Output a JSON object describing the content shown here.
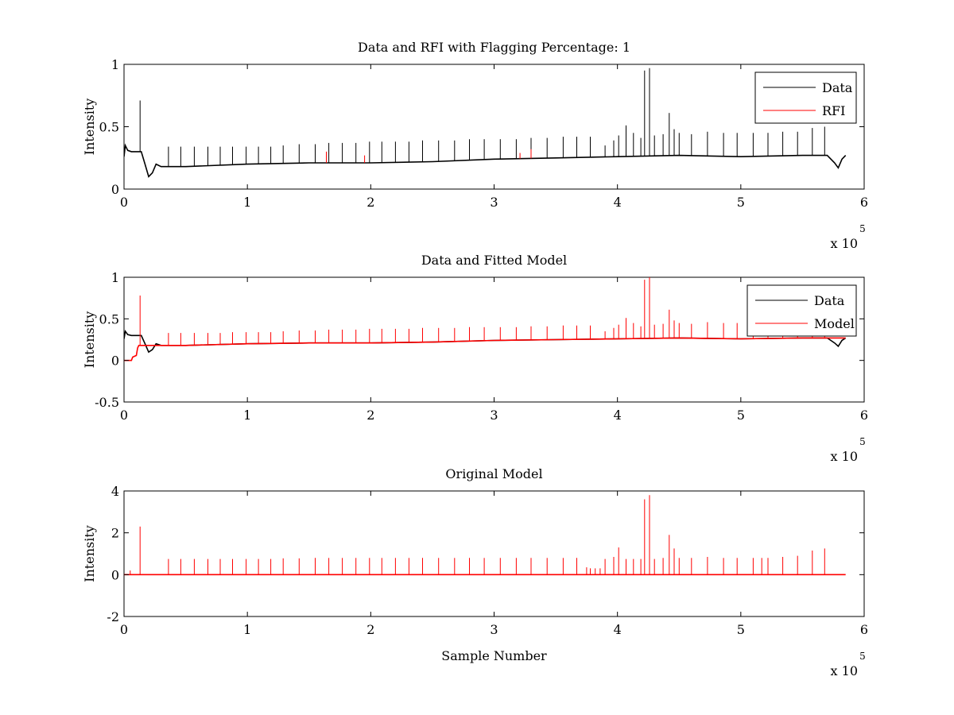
{
  "colors": {
    "data": "#000000",
    "rfi": "#ff0000",
    "model": "#ff0000"
  },
  "chart_data": [
    {
      "type": "line",
      "title": "Data and RFI with Flagging Percentage: 1",
      "xlabel": "",
      "ylabel": "Intensity",
      "xlim": [
        0,
        6
      ],
      "ylim": [
        0,
        1
      ],
      "x_multiplier": "x 10",
      "x_multiplier_exp": "5",
      "xticks": [
        0,
        1,
        2,
        3,
        4,
        5,
        6
      ],
      "yticks": [
        0,
        0.5,
        1
      ],
      "ytick_labels": [
        "0",
        "0.5",
        "1"
      ],
      "legend": {
        "placement": "top-right",
        "entries": [
          "Data",
          "RFI"
        ]
      },
      "series": [
        {
          "name": "Data",
          "color": "#000000",
          "baseline": {
            "x": [
              0,
              0.01,
              0.03,
              0.06,
              0.1,
              0.14,
              0.17,
              0.2,
              0.23,
              0.26,
              0.3,
              0.5,
              1,
              1.5,
              2,
              2.5,
              3,
              3.5,
              4,
              4.5,
              5,
              5.5,
              5.7,
              5.76,
              5.79,
              5.82,
              5.85
            ],
            "y": [
              0.26,
              0.35,
              0.31,
              0.3,
              0.3,
              0.3,
              0.2,
              0.1,
              0.13,
              0.2,
              0.18,
              0.18,
              0.2,
              0.21,
              0.21,
              0.22,
              0.24,
              0.25,
              0.26,
              0.27,
              0.26,
              0.27,
              0.27,
              0.21,
              0.17,
              0.24,
              0.27
            ]
          },
          "spikes": {
            "x": [
              0.13,
              0.36,
              0.46,
              0.57,
              0.68,
              0.78,
              0.88,
              0.99,
              1.09,
              1.19,
              1.29,
              1.42,
              1.55,
              1.66,
              1.77,
              1.88,
              1.99,
              2.09,
              2.2,
              2.31,
              2.42,
              2.55,
              2.68,
              2.8,
              2.92,
              3.05,
              3.18,
              3.3,
              3.43,
              3.56,
              3.67,
              3.78,
              3.9,
              3.97,
              4.01,
              4.07,
              4.13,
              4.19,
              4.22,
              4.26,
              4.3,
              4.37,
              4.42,
              4.46,
              4.5,
              4.6,
              4.73,
              4.86,
              4.97,
              5.1,
              5.22,
              5.34,
              5.46,
              5.58,
              5.68
            ],
            "y": [
              0.71,
              0.34,
              0.34,
              0.34,
              0.34,
              0.34,
              0.34,
              0.34,
              0.34,
              0.34,
              0.35,
              0.36,
              0.36,
              0.37,
              0.37,
              0.37,
              0.38,
              0.38,
              0.38,
              0.38,
              0.39,
              0.39,
              0.39,
              0.4,
              0.4,
              0.4,
              0.4,
              0.41,
              0.41,
              0.42,
              0.42,
              0.42,
              0.35,
              0.39,
              0.43,
              0.51,
              0.45,
              0.41,
              0.95,
              0.97,
              0.43,
              0.44,
              0.61,
              0.48,
              0.45,
              0.44,
              0.46,
              0.45,
              0.45,
              0.45,
              0.45,
              0.46,
              0.46,
              0.49,
              0.5
            ]
          }
        },
        {
          "name": "RFI",
          "color": "#ff0000",
          "spikes": {
            "x": [
              1.64,
              1.95,
              3.21,
              3.3
            ],
            "y": [
              0.3,
              0.27,
              0.29,
              0.32
            ]
          }
        }
      ]
    },
    {
      "type": "line",
      "title": "Data and Fitted Model",
      "xlabel": "",
      "ylabel": "Intensity",
      "xlim": [
        0,
        6
      ],
      "ylim": [
        -0.5,
        1
      ],
      "x_multiplier": "x 10",
      "x_multiplier_exp": "5",
      "xticks": [
        0,
        1,
        2,
        3,
        4,
        5,
        6
      ],
      "yticks": [
        -0.5,
        0,
        0.5,
        1
      ],
      "ytick_labels": [
        "-0.5",
        "0",
        "0.5",
        "1"
      ],
      "legend": {
        "placement": "top-right",
        "entries": [
          "Data",
          "Model"
        ]
      },
      "series": [
        {
          "name": "Data",
          "color": "#000000",
          "baseline": {
            "x": [
              0,
              0.01,
              0.03,
              0.06,
              0.1,
              0.14,
              0.17,
              0.2,
              0.23,
              0.26,
              0.3,
              0.5,
              1,
              1.5,
              2,
              2.5,
              3,
              3.5,
              4,
              4.5,
              5,
              5.5,
              5.7,
              5.76,
              5.79,
              5.82,
              5.85
            ],
            "y": [
              0.26,
              0.35,
              0.31,
              0.3,
              0.3,
              0.3,
              0.2,
              0.1,
              0.13,
              0.2,
              0.18,
              0.18,
              0.2,
              0.21,
              0.21,
              0.22,
              0.24,
              0.25,
              0.26,
              0.27,
              0.26,
              0.27,
              0.27,
              0.21,
              0.17,
              0.24,
              0.27
            ]
          }
        },
        {
          "name": "Model",
          "color": "#ff0000",
          "baseline": {
            "x": [
              0,
              0.06,
              0.07,
              0.1,
              0.11,
              0.12,
              0.14,
              0.3,
              0.5,
              1,
              1.5,
              2,
              2.5,
              3,
              3.5,
              4,
              4.5,
              5,
              5.5,
              5.85
            ],
            "y": [
              0.0,
              0.0,
              0.04,
              0.06,
              0.15,
              0.18,
              0.18,
              0.18,
              0.18,
              0.2,
              0.21,
              0.21,
              0.22,
              0.24,
              0.25,
              0.26,
              0.27,
              0.26,
              0.27,
              0.27
            ]
          },
          "spikes": {
            "x": [
              0.13,
              0.36,
              0.46,
              0.57,
              0.68,
              0.78,
              0.88,
              0.99,
              1.09,
              1.19,
              1.29,
              1.42,
              1.55,
              1.66,
              1.77,
              1.88,
              1.99,
              2.09,
              2.2,
              2.31,
              2.42,
              2.55,
              2.68,
              2.8,
              2.92,
              3.05,
              3.18,
              3.3,
              3.43,
              3.56,
              3.67,
              3.78,
              3.9,
              3.97,
              4.01,
              4.07,
              4.13,
              4.19,
              4.22,
              4.26,
              4.3,
              4.37,
              4.42,
              4.46,
              4.5,
              4.6,
              4.73,
              4.86,
              4.97,
              5.1,
              5.22,
              5.34,
              5.46,
              5.58,
              5.68
            ],
            "y": [
              0.78,
              0.33,
              0.33,
              0.33,
              0.33,
              0.33,
              0.34,
              0.34,
              0.34,
              0.34,
              0.35,
              0.36,
              0.36,
              0.37,
              0.37,
              0.37,
              0.38,
              0.38,
              0.38,
              0.38,
              0.39,
              0.39,
              0.39,
              0.4,
              0.4,
              0.4,
              0.4,
              0.41,
              0.41,
              0.42,
              0.42,
              0.42,
              0.35,
              0.39,
              0.43,
              0.51,
              0.45,
              0.41,
              0.97,
              1.0,
              0.43,
              0.44,
              0.61,
              0.48,
              0.45,
              0.44,
              0.46,
              0.45,
              0.45,
              0.45,
              0.45,
              0.46,
              0.46,
              0.49,
              0.5
            ]
          }
        }
      ]
    },
    {
      "type": "line",
      "title": "Original Model",
      "xlabel": "Sample Number",
      "ylabel": "Intensity",
      "xlim": [
        0,
        6
      ],
      "ylim": [
        -2,
        4
      ],
      "x_multiplier": "x 10",
      "x_multiplier_exp": "5",
      "xticks": [
        0,
        1,
        2,
        3,
        4,
        5,
        6
      ],
      "yticks": [
        -2,
        0,
        2,
        4
      ],
      "ytick_labels": [
        "-2",
        "0",
        "2",
        "4"
      ],
      "series": [
        {
          "name": "",
          "color": "#ff0000",
          "baseline": {
            "x": [
              0,
              5.85
            ],
            "y": [
              0,
              0
            ]
          },
          "spikes": {
            "x": [
              0.05,
              0.13,
              0.36,
              0.46,
              0.57,
              0.68,
              0.78,
              0.88,
              0.99,
              1.09,
              1.19,
              1.29,
              1.42,
              1.55,
              1.66,
              1.77,
              1.88,
              1.99,
              2.09,
              2.2,
              2.31,
              2.42,
              2.55,
              2.68,
              2.8,
              2.92,
              3.05,
              3.18,
              3.3,
              3.43,
              3.56,
              3.67,
              3.75,
              3.78,
              3.82,
              3.86,
              3.9,
              3.97,
              4.01,
              4.07,
              4.13,
              4.19,
              4.22,
              4.26,
              4.3,
              4.37,
              4.42,
              4.46,
              4.5,
              4.6,
              4.73,
              4.86,
              4.97,
              5.1,
              5.17,
              5.22,
              5.34,
              5.46,
              5.58,
              5.68
            ],
            "y": [
              0.2,
              2.3,
              0.75,
              0.75,
              0.75,
              0.75,
              0.75,
              0.75,
              0.75,
              0.75,
              0.75,
              0.78,
              0.78,
              0.8,
              0.8,
              0.8,
              0.8,
              0.8,
              0.8,
              0.8,
              0.8,
              0.8,
              0.8,
              0.8,
              0.8,
              0.8,
              0.8,
              0.8,
              0.8,
              0.8,
              0.8,
              0.8,
              0.35,
              0.3,
              0.3,
              0.3,
              0.75,
              0.85,
              1.3,
              0.75,
              0.75,
              0.75,
              3.6,
              3.8,
              0.75,
              0.8,
              1.9,
              1.25,
              0.8,
              0.8,
              0.85,
              0.8,
              0.8,
              0.8,
              0.8,
              0.8,
              0.85,
              0.9,
              1.15,
              1.25
            ]
          }
        }
      ]
    }
  ]
}
